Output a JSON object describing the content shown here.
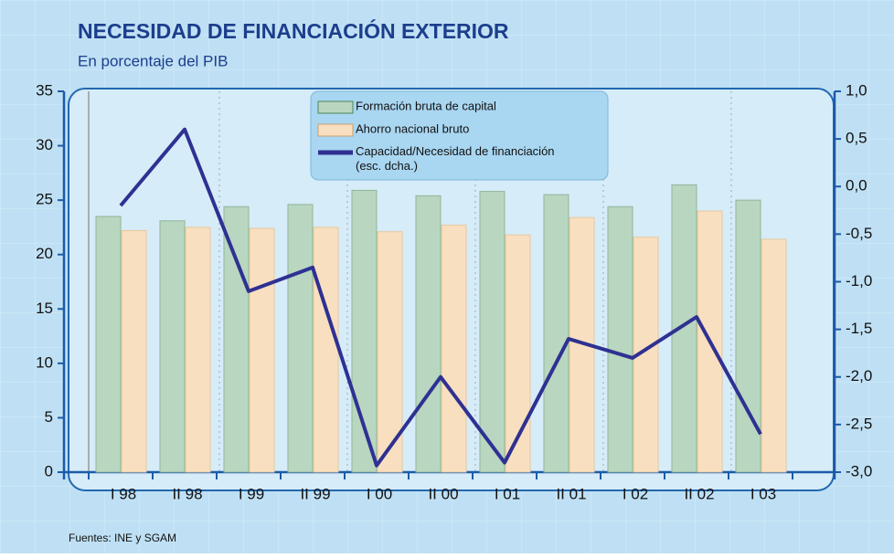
{
  "chart_data": {
    "type": "bar_line",
    "title": "NECESIDAD DE FINANCIACIÓN EXTERIOR",
    "subtitle": "En porcentaje del PIB",
    "source": "Fuentes: INE y SGAM",
    "categories": [
      "I 98",
      "II 98",
      "I 99",
      "II 99",
      "I 00",
      "II 00",
      "I 01",
      "II 01",
      "I 02",
      "II 02",
      "I 03"
    ],
    "series": [
      {
        "name": "Formación bruta de capital",
        "type": "bar",
        "color": "#b9d6c0",
        "values": [
          23.5,
          23.1,
          24.4,
          24.6,
          25.9,
          25.4,
          25.8,
          25.5,
          24.4,
          26.4,
          25.0
        ]
      },
      {
        "name": "Ahorro nacional bruto",
        "type": "bar",
        "color": "#f8dfbf",
        "values": [
          22.2,
          22.5,
          22.4,
          22.5,
          22.1,
          22.7,
          21.8,
          23.4,
          21.6,
          24.0,
          21.4
        ]
      },
      {
        "name": "Capacidad/Necesidad de financiación (esc. dcha.)",
        "type": "line",
        "axis": "y2",
        "color": "#2e3192",
        "values": [
          -0.2,
          0.6,
          -1.1,
          -0.85,
          -2.93,
          -2.0,
          -2.9,
          -1.6,
          -1.8,
          -1.37,
          -2.6
        ]
      }
    ],
    "ylim": [
      0,
      35
    ],
    "yticks": [
      0,
      5,
      10,
      15,
      20,
      25,
      30,
      35
    ],
    "y2lim": [
      -3,
      1
    ],
    "y2ticks": [
      {
        "value": 1,
        "label": "1,0"
      },
      {
        "value": 0.5,
        "label": "0,5"
      },
      {
        "value": 0,
        "label": "0,0"
      },
      {
        "value": -0.5,
        "label": "-0,5"
      },
      {
        "value": -1,
        "label": "-1,0"
      },
      {
        "value": -1.5,
        "label": "-1,5"
      },
      {
        "value": -2,
        "label": "-2,0"
      },
      {
        "value": -2.5,
        "label": "-2,5"
      },
      {
        "value": -3,
        "label": "-3,0"
      }
    ]
  }
}
